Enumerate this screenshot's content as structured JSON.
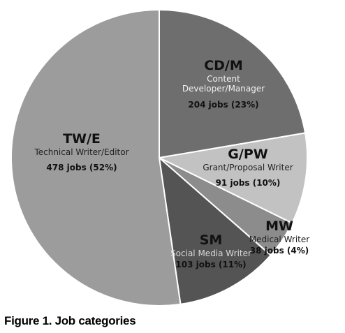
{
  "chart_data": {
    "type": "pie",
    "categories": [
      "CD/M",
      "G/PW",
      "MW",
      "SM",
      "TW/E"
    ],
    "descriptions": [
      "Content Developer/Manager",
      "Grant/Proposal Writer",
      "Medical Writer",
      "Social Media Writer",
      "Technical Writer/Editor"
    ],
    "values": [
      204,
      91,
      38,
      103,
      478
    ],
    "value_labels": [
      "204 jobs (23%)",
      "91 jobs (10%)",
      "38 jobs (4%)",
      "103 jobs (11%)",
      "478 jobs (52%)"
    ],
    "colors": [
      "#6e6e6e",
      "#c2c2c2",
      "#8c8c8c",
      "#545454",
      "#9c9c9c"
    ],
    "caption": "Figure 1. Job categories"
  }
}
